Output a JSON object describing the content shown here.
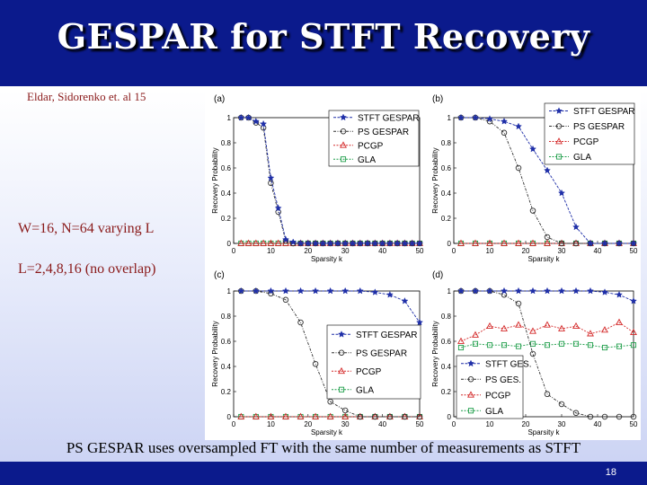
{
  "slide": {
    "title": "GESPAR for STFT Recovery",
    "citation": "Eldar, Sidorenko et. al 15",
    "note_1": "W=16, N=64 varying L",
    "note_2": "L=2,4,8,16 (no overlap)",
    "caption": "PS GESPAR uses oversampled FT with the same number of measurements as STFT",
    "page_number": "18"
  },
  "colors": {
    "title_bar": "#0b1a8c",
    "STFT GESPAR": "#1f2fa8",
    "PS GESPAR": "#303030",
    "PCGP": "#d42a2a",
    "GLA": "#1f9e4a"
  },
  "chart_data": [
    {
      "panel": "(a)",
      "type": "line",
      "xlabel": "Sparsity k",
      "ylabel": "Recovery Probability",
      "xlim": [
        0,
        50
      ],
      "ylim": [
        0,
        1
      ],
      "xticks": [
        0,
        10,
        20,
        30,
        40,
        50
      ],
      "yticks": [
        0,
        0.2,
        0.4,
        0.6,
        0.8,
        1
      ],
      "x_labels_shown": [
        "0",
        "10",
        "20",
        "30",
        "40",
        "50"
      ],
      "y_labels_shown": [
        "0",
        "0.2",
        "0.4",
        "0.6",
        "0.8",
        "1"
      ],
      "x": [
        2,
        4,
        6,
        8,
        10,
        12,
        14,
        16,
        18,
        20,
        22,
        24,
        26,
        28,
        30,
        32,
        34,
        36,
        38,
        40,
        42,
        44,
        46,
        48,
        50
      ],
      "legend_position": "top-right",
      "series": [
        {
          "name": "STFT GESPAR",
          "marker": "star",
          "values": [
            1,
            1,
            0.97,
            0.95,
            0.52,
            0.28,
            0.03,
            0.01,
            0,
            0,
            0,
            0,
            0,
            0,
            0,
            0,
            0,
            0,
            0,
            0,
            0,
            0,
            0,
            0,
            0
          ]
        },
        {
          "name": "PS GESPAR",
          "marker": "circle",
          "values": [
            1,
            1,
            0.96,
            0.92,
            0.48,
            0.25,
            0.02,
            0,
            0,
            0,
            0,
            0,
            0,
            0,
            0,
            0,
            0,
            0,
            0,
            0,
            0,
            0,
            0,
            0,
            0
          ]
        },
        {
          "name": "PCGP",
          "marker": "triangle",
          "values": [
            0,
            0,
            0,
            0,
            0,
            0,
            0,
            0,
            0,
            0,
            0,
            0,
            0,
            0,
            0,
            0,
            0,
            0,
            0,
            0,
            0,
            0,
            0,
            0,
            0
          ]
        },
        {
          "name": "GLA",
          "marker": "square",
          "values": [
            0,
            0,
            0,
            0,
            0,
            0,
            0,
            0,
            0,
            0,
            0,
            0,
            0,
            0,
            0,
            0,
            0,
            0,
            0,
            0,
            0,
            0,
            0,
            0,
            0
          ]
        }
      ]
    },
    {
      "panel": "(b)",
      "type": "line",
      "xlabel": "Sparsity k",
      "ylabel": "Recovery Probability",
      "xlim": [
        0,
        50
      ],
      "ylim": [
        0,
        1
      ],
      "xticks": [
        0,
        10,
        20,
        30,
        40,
        50
      ],
      "yticks": [
        0,
        0.2,
        0.4,
        0.6,
        0.8,
        1
      ],
      "x_labels_shown": [
        "0",
        "10",
        "20",
        "30",
        "40",
        "50"
      ],
      "y_labels_shown": [
        "0",
        "0.2",
        "0.4",
        "0.6",
        "0.8",
        "1"
      ],
      "x": [
        2,
        6,
        10,
        14,
        18,
        22,
        26,
        30,
        34,
        38,
        42,
        46,
        50
      ],
      "legend_position": "top-right",
      "series": [
        {
          "name": "STFT GESPAR",
          "marker": "star",
          "values": [
            1,
            1,
            0.99,
            0.97,
            0.93,
            0.75,
            0.58,
            0.4,
            0.13,
            0,
            0,
            0,
            0
          ]
        },
        {
          "name": "PS GESPAR",
          "marker": "circle",
          "values": [
            1,
            1,
            0.97,
            0.88,
            0.6,
            0.26,
            0.05,
            0,
            0,
            0,
            0,
            0,
            0
          ]
        },
        {
          "name": "PCGP",
          "marker": "triangle",
          "values": [
            0,
            0,
            0,
            0,
            0,
            0,
            0,
            0,
            0,
            0,
            0,
            0,
            0
          ]
        },
        {
          "name": "GLA",
          "marker": "square",
          "values": [
            0,
            0,
            0,
            0,
            0,
            0,
            0,
            0,
            0,
            0,
            0,
            0,
            0
          ]
        }
      ]
    },
    {
      "panel": "(c)",
      "type": "line",
      "xlabel": "Sparsity k",
      "ylabel": "Recovery Probability",
      "xlim": [
        0,
        50
      ],
      "ylim": [
        0,
        1
      ],
      "xticks": [
        0,
        10,
        20,
        30,
        40,
        50
      ],
      "yticks": [
        0,
        0.2,
        0.4,
        0.6,
        0.8,
        1
      ],
      "x_labels_shown": [
        "0",
        "10",
        "20",
        "30",
        "40",
        "50"
      ],
      "y_labels_shown": [
        "0",
        "0.2",
        "0.4",
        "0.6",
        "0.8",
        "1"
      ],
      "x": [
        2,
        6,
        10,
        14,
        18,
        22,
        26,
        30,
        34,
        38,
        42,
        46,
        50
      ],
      "legend_position": "lower-right",
      "series": [
        {
          "name": "STFT GESPAR",
          "marker": "star",
          "values": [
            1,
            1,
            1,
            1,
            1,
            1,
            1,
            1,
            1,
            0.99,
            0.97,
            0.92,
            0.75
          ]
        },
        {
          "name": "PS GESPAR",
          "marker": "circle",
          "values": [
            1,
            1,
            0.98,
            0.93,
            0.75,
            0.42,
            0.12,
            0.05,
            0,
            0,
            0,
            0,
            0
          ]
        },
        {
          "name": "PCGP",
          "marker": "triangle",
          "values": [
            0,
            0,
            0,
            0,
            0,
            0,
            0,
            0,
            0,
            0,
            0,
            0,
            0
          ]
        },
        {
          "name": "GLA",
          "marker": "square",
          "values": [
            0,
            0,
            0,
            0,
            0,
            0,
            0,
            0,
            0,
            0,
            0,
            0,
            0
          ]
        }
      ]
    },
    {
      "panel": "(d)",
      "type": "line",
      "xlabel": "Sparsity k",
      "ylabel": "Recovery Probability",
      "xlim": [
        0,
        50
      ],
      "ylim": [
        0,
        1
      ],
      "xticks": [
        0,
        10,
        20,
        30,
        40,
        50
      ],
      "yticks": [
        0,
        0.2,
        0.4,
        0.6,
        0.8,
        1
      ],
      "x_labels_shown": [
        "0",
        "10",
        "20",
        "30",
        "40",
        "50"
      ],
      "y_labels_shown": [
        "0",
        "0.2",
        "0.4",
        "0.6",
        "0.8",
        "1"
      ],
      "x": [
        2,
        6,
        10,
        14,
        18,
        22,
        26,
        30,
        34,
        38,
        42,
        46,
        50
      ],
      "legend_position": "lower-left",
      "series": [
        {
          "name": "STFT GES.",
          "marker": "star",
          "values": [
            1,
            1,
            1,
            1,
            1,
            1,
            1,
            1,
            1,
            1,
            0.99,
            0.97,
            0.92
          ]
        },
        {
          "name": "PS GES.",
          "marker": "circle",
          "values": [
            1,
            1,
            1,
            0.97,
            0.9,
            0.5,
            0.18,
            0.1,
            0.03,
            0,
            0,
            0,
            0
          ]
        },
        {
          "name": "PCGP",
          "marker": "triangle",
          "values": [
            0.6,
            0.65,
            0.72,
            0.7,
            0.73,
            0.68,
            0.73,
            0.7,
            0.72,
            0.66,
            0.69,
            0.75,
            0.67
          ]
        },
        {
          "name": "GLA",
          "marker": "square",
          "values": [
            0.55,
            0.58,
            0.57,
            0.57,
            0.56,
            0.58,
            0.57,
            0.58,
            0.58,
            0.57,
            0.55,
            0.56,
            0.57
          ]
        }
      ]
    }
  ]
}
